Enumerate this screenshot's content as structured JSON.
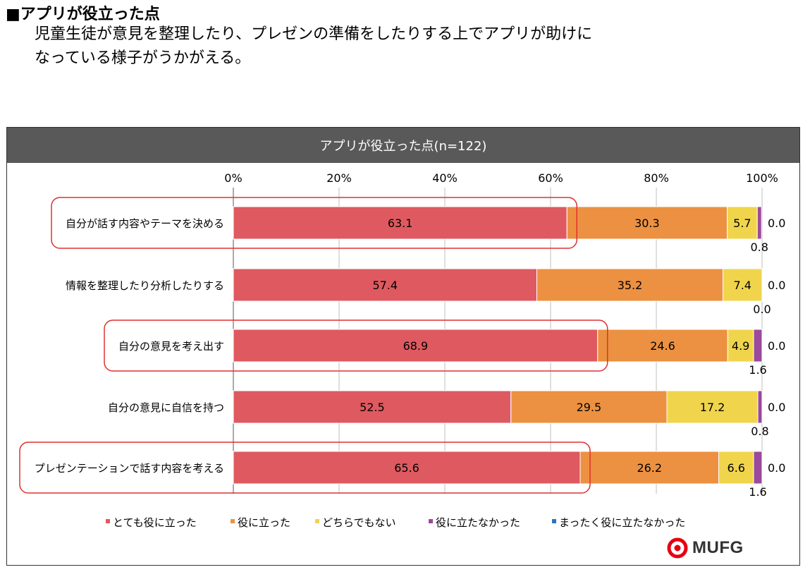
{
  "page": {
    "heading": "■アプリが役立った点",
    "description_line1": "児童生徒が意見を整理したり、プレゼンの準備をしたりする上でアプリが助けに",
    "description_line2": "なっている様子がうかがえる。",
    "logo_text": "MUFG"
  },
  "chart_data": {
    "type": "bar",
    "orientation": "horizontal",
    "stacked": true,
    "title": "アプリが役立った点(n=122)",
    "categories": [
      "自分が話す内容やテーマを決める",
      "情報を整理したり分析したりする",
      "自分の意見を考え出す",
      "自分の意見に自信を持つ",
      "プレゼンテーションで話す内容を考える"
    ],
    "highlighted_categories": [
      0,
      2,
      4
    ],
    "series": [
      {
        "name": "とても役に立った",
        "color": "#de5a60",
        "values": [
          63.1,
          57.4,
          68.9,
          52.5,
          65.6
        ]
      },
      {
        "name": "役に立った",
        "color": "#ec9141",
        "values": [
          30.3,
          35.2,
          24.6,
          29.5,
          26.2
        ]
      },
      {
        "name": "どちらでもない",
        "color": "#f0d54c",
        "values": [
          5.7,
          7.4,
          4.9,
          17.2,
          6.6
        ]
      },
      {
        "name": "役に立たなかった",
        "color": "#9b4a9b",
        "values": [
          0.8,
          0.0,
          1.6,
          0.8,
          1.6
        ]
      },
      {
        "name": "まったく役に立たなかった",
        "color": "#2e75b6",
        "values": [
          0.0,
          0.0,
          0.0,
          0.0,
          0.0
        ]
      }
    ],
    "xlim": [
      0,
      100
    ],
    "ticks": [
      "0%",
      "20%",
      "40%",
      "60%",
      "80%",
      "100%"
    ],
    "highlight_color": "#e03030",
    "legend_position": "bottom"
  }
}
